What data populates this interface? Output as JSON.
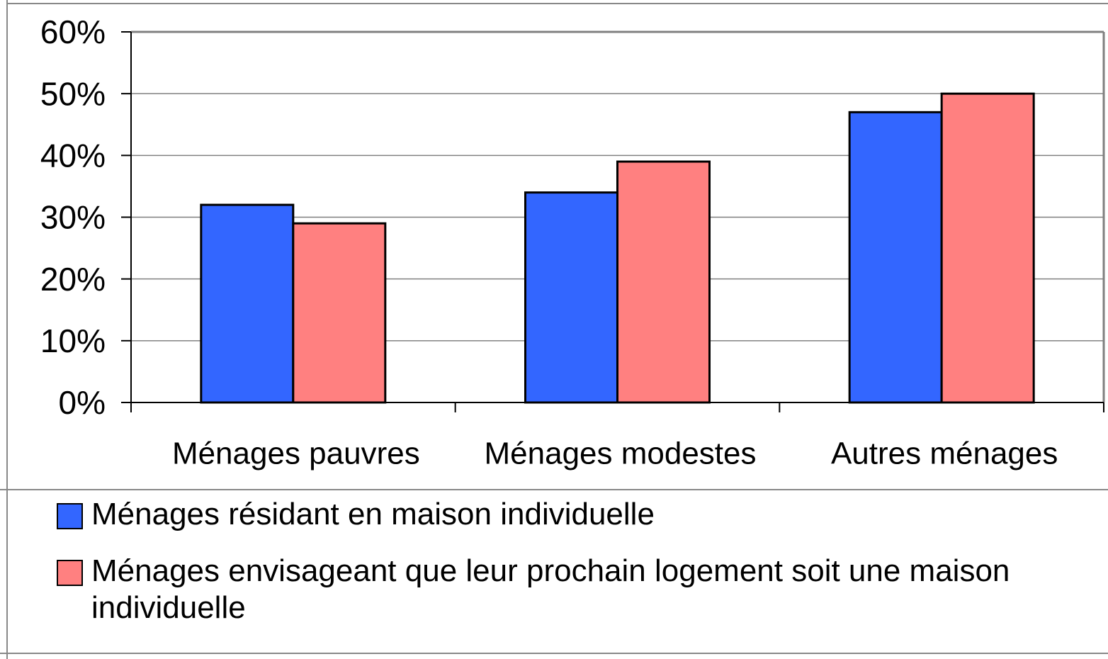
{
  "chart_data": {
    "type": "bar",
    "categories": [
      "Ménages pauvres",
      "Ménages modestes",
      "Autres ménages"
    ],
    "series": [
      {
        "name": "Ménages résidant en maison individuelle",
        "color": "#3366ff",
        "values": [
          32,
          34,
          47
        ]
      },
      {
        "name": "Ménages envisageant que leur prochain logement soit une maison individuelle",
        "color": "#ff8080",
        "values": [
          29,
          39,
          50
        ]
      }
    ],
    "ylim": [
      0,
      60
    ],
    "yticks": [
      {
        "value": 0,
        "label": "0%"
      },
      {
        "value": 10,
        "label": "10%"
      },
      {
        "value": 20,
        "label": "20%"
      },
      {
        "value": 30,
        "label": "30%"
      },
      {
        "value": 40,
        "label": "40%"
      },
      {
        "value": 50,
        "label": "50%"
      },
      {
        "value": 60,
        "label": "60%"
      }
    ],
    "grid": true,
    "legend": "bottom"
  }
}
